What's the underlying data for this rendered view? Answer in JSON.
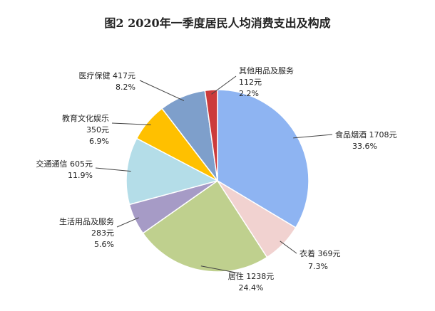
{
  "chart_data": {
    "type": "pie",
    "title": "图2   2020年一季度居民人均消费支出及构成",
    "series": [
      {
        "name": "食品烟酒",
        "value_label": "1708元",
        "pct_label": "33.6%",
        "value": 1708,
        "percent": 33.6,
        "color": "#8EB4F2"
      },
      {
        "name": "衣着",
        "value_label": "369元",
        "pct_label": "7.3%",
        "value": 369,
        "percent": 7.3,
        "color": "#F1D2D0"
      },
      {
        "name": "居住",
        "value_label": "1238元",
        "pct_label": "24.4%",
        "value": 1238,
        "percent": 24.4,
        "color": "#BFD08E"
      },
      {
        "name": "生活用品及服务",
        "value_label": "283元",
        "pct_label": "5.6%",
        "value": 283,
        "percent": 5.6,
        "color": "#A69BC6"
      },
      {
        "name": "交通通信",
        "value_label": "605元",
        "pct_label": "11.9%",
        "value": 605,
        "percent": 11.9,
        "color": "#B4DDE8"
      },
      {
        "name": "教育文化娱乐",
        "value_label": "350元",
        "pct_label": "6.9%",
        "value": 350,
        "percent": 6.9,
        "color": "#FFC000"
      },
      {
        "name": "医疗保健",
        "value_label": "417元",
        "pct_label": "8.2%",
        "value": 417,
        "percent": 8.2,
        "color": "#7E9FCB"
      },
      {
        "name": "其他用品及服务",
        "value_label": "112元",
        "pct_label": "2.2%",
        "value": 112,
        "percent": 2.2,
        "color": "#CC3B3B"
      }
    ]
  }
}
